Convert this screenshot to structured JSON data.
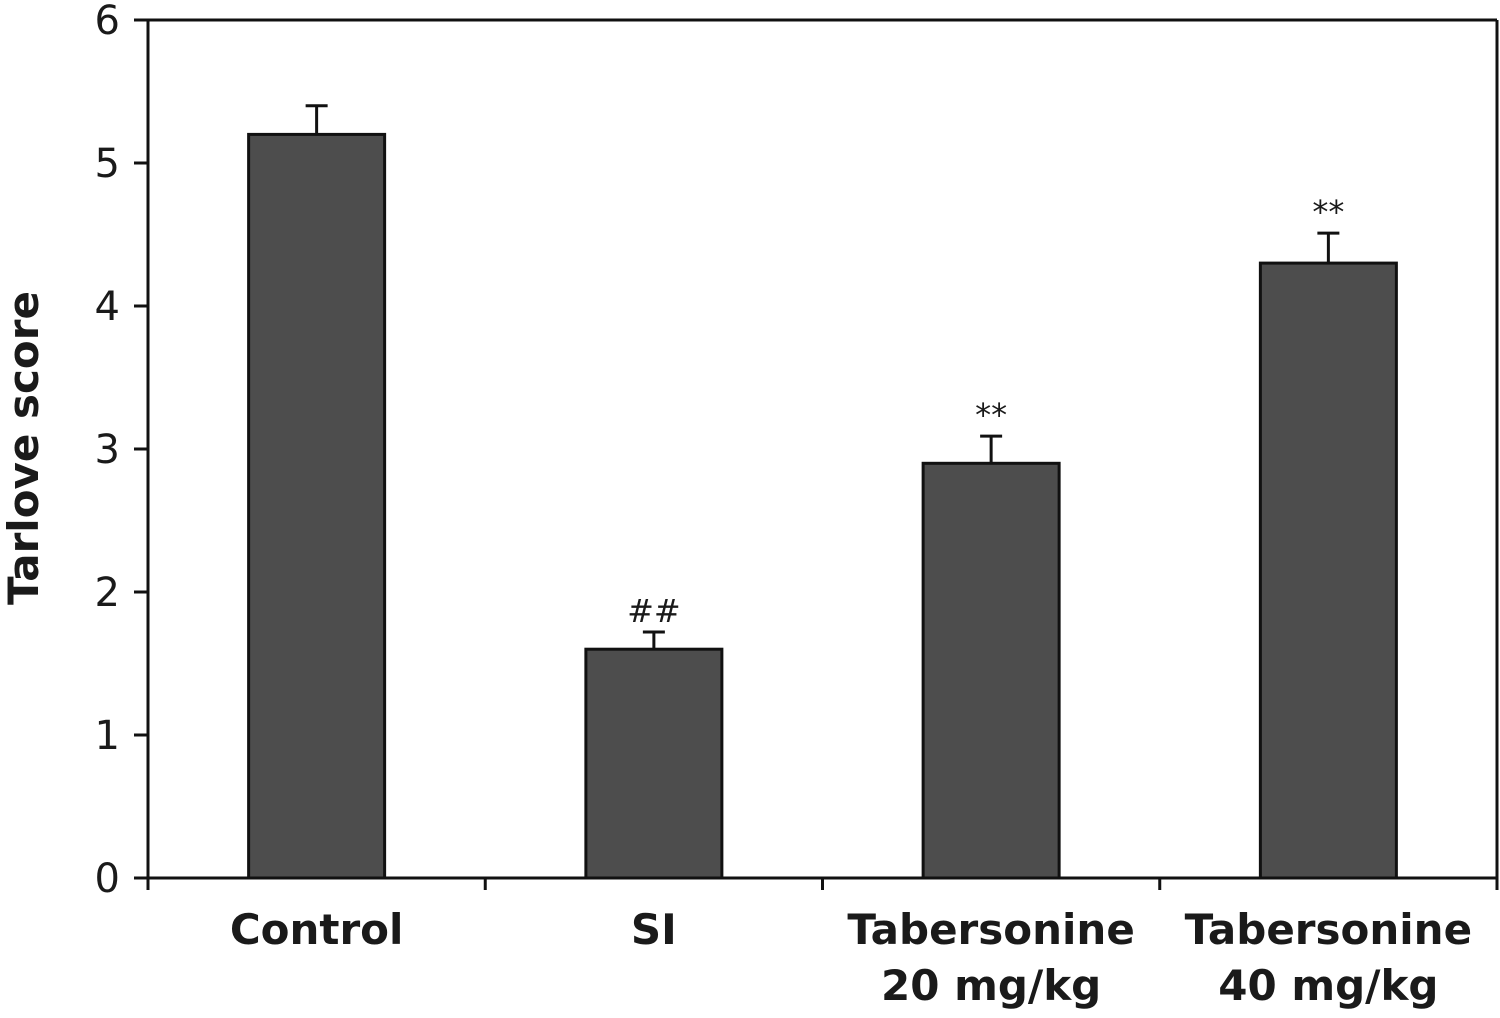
{
  "chart_data": {
    "type": "bar",
    "ylabel": "Tarlove score",
    "xlabel": "",
    "ylim": [
      0,
      6
    ],
    "yticks": [
      0,
      1,
      2,
      3,
      4,
      5,
      6
    ],
    "grid": false,
    "bar_color": "#4d4d4d",
    "categories": [
      [
        "Control"
      ],
      [
        "SI"
      ],
      [
        "Tabersonine",
        "20 mg/kg"
      ],
      [
        "Tabersonine",
        "40 mg/kg"
      ]
    ],
    "values": [
      5.2,
      1.6,
      2.9,
      4.3
    ],
    "errors": [
      0.2,
      0.12,
      0.19,
      0.21
    ],
    "annotations": [
      "",
      "##",
      "**",
      "**"
    ]
  }
}
